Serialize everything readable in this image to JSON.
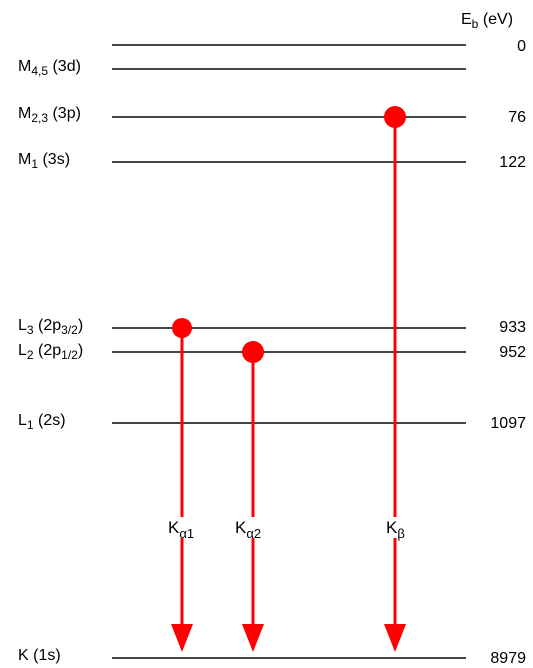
{
  "header": {
    "main": "E",
    "sub": "b",
    "unit": "(eV)"
  },
  "levels": [
    {
      "id": "vacuum",
      "energy": "0"
    },
    {
      "id": "M45",
      "main": "M",
      "sub": "4,5",
      "orbital": "(3d)"
    },
    {
      "id": "M23",
      "main": "M",
      "sub": "2,3",
      "orbital": "(3p)",
      "energy": "76"
    },
    {
      "id": "M1",
      "main": "M",
      "sub": "1",
      "orbital": "(3s)",
      "energy": "122"
    },
    {
      "id": "L3",
      "main": "L",
      "sub": "3",
      "orbital_pre": "(2p",
      "orbital_sub": "3/2",
      "orbital_post": ")",
      "energy": "933"
    },
    {
      "id": "L2",
      "main": "L",
      "sub": "2",
      "orbital_pre": "(2p",
      "orbital_sub": "1/2",
      "orbital_post": ")",
      "energy": "952"
    },
    {
      "id": "L1",
      "main": "L",
      "sub": "1",
      "orbital": "(2s)",
      "energy": "1097"
    },
    {
      "id": "K",
      "main": "K",
      "orbital": "(1s)",
      "energy": "8979"
    }
  ],
  "transitions": [
    {
      "id": "Ka1",
      "main": "K",
      "sub": "α1",
      "from": "L3",
      "to": "K"
    },
    {
      "id": "Ka2",
      "main": "K",
      "sub": "α2",
      "from": "L2",
      "to": "K"
    },
    {
      "id": "Kb",
      "main": "K",
      "sub": "β",
      "from": "M23",
      "to": "K"
    }
  ],
  "colors": {
    "line": "#000000",
    "arrow": "#ff0000",
    "electron": "#ff0000"
  }
}
